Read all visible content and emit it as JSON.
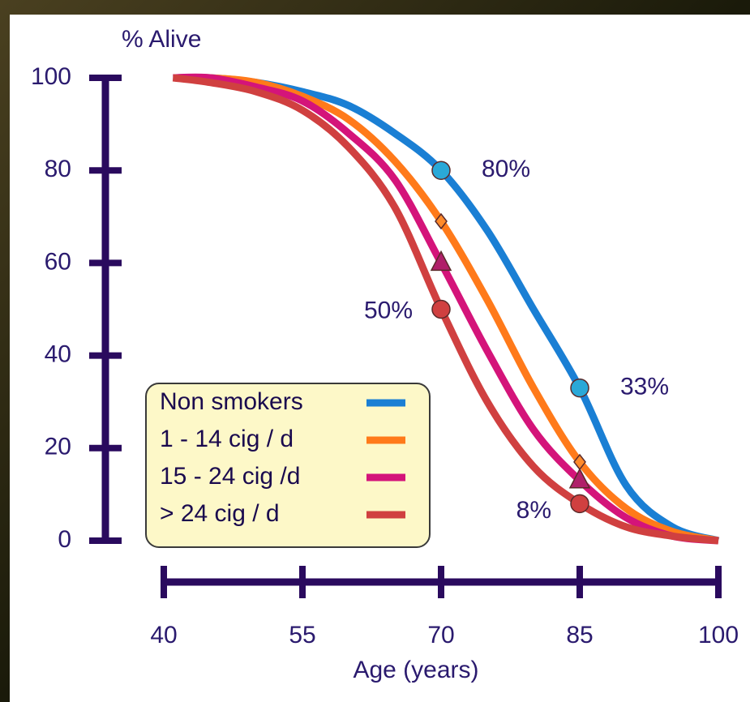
{
  "chart_data": {
    "type": "line",
    "y_label": "% Alive",
    "x_label": "Age (years)",
    "xlim": [
      40,
      100
    ],
    "ylim": [
      0,
      100
    ],
    "xticks": [
      40,
      55,
      70,
      85,
      100
    ],
    "yticks": [
      0,
      20,
      40,
      60,
      80,
      100
    ],
    "x": [
      41,
      45,
      50,
      55,
      60,
      65,
      70,
      75,
      80,
      85,
      90,
      95,
      100
    ],
    "series": [
      {
        "name": "Non smokers",
        "color": "#1a7fd4",
        "marker": "circle",
        "marker_color": "#2aa8d8",
        "values": [
          100,
          100,
          99,
          97,
          94,
          88,
          80,
          67,
          50,
          33,
          12,
          3,
          0
        ],
        "marker_x": [
          70,
          85
        ],
        "marker_values": [
          80,
          33
        ],
        "marker_labels": [
          "80%",
          "33%"
        ]
      },
      {
        "name": "1 - 14 cig / d",
        "color": "#ff7a1a",
        "marker": "diamond",
        "marker_color": "#ff8a2a",
        "values": [
          100,
          100,
          99,
          96,
          91,
          82,
          69,
          52,
          33,
          17,
          7,
          2,
          0
        ],
        "marker_x": [
          70,
          85
        ],
        "marker_values": [
          69,
          17
        ]
      },
      {
        "name": "15 - 24 cig /d",
        "color": "#d4147a",
        "marker": "triangle",
        "marker_color": "#b0206a",
        "values": [
          100,
          100,
          98,
          95,
          88,
          78,
          60,
          41,
          24,
          13,
          5,
          1,
          0
        ],
        "marker_x": [
          70,
          85
        ],
        "marker_values": [
          60,
          13
        ]
      },
      {
        "name": "> 24 cig / d",
        "color": "#d04040",
        "marker": "circle",
        "marker_color": "#d04040",
        "values": [
          100,
          99,
          97,
          93,
          85,
          72,
          50,
          30,
          16,
          8,
          3,
          1,
          0
        ],
        "marker_x": [
          70,
          85
        ],
        "marker_values": [
          50,
          8
        ],
        "marker_labels": [
          "50%",
          "8%"
        ]
      }
    ]
  }
}
